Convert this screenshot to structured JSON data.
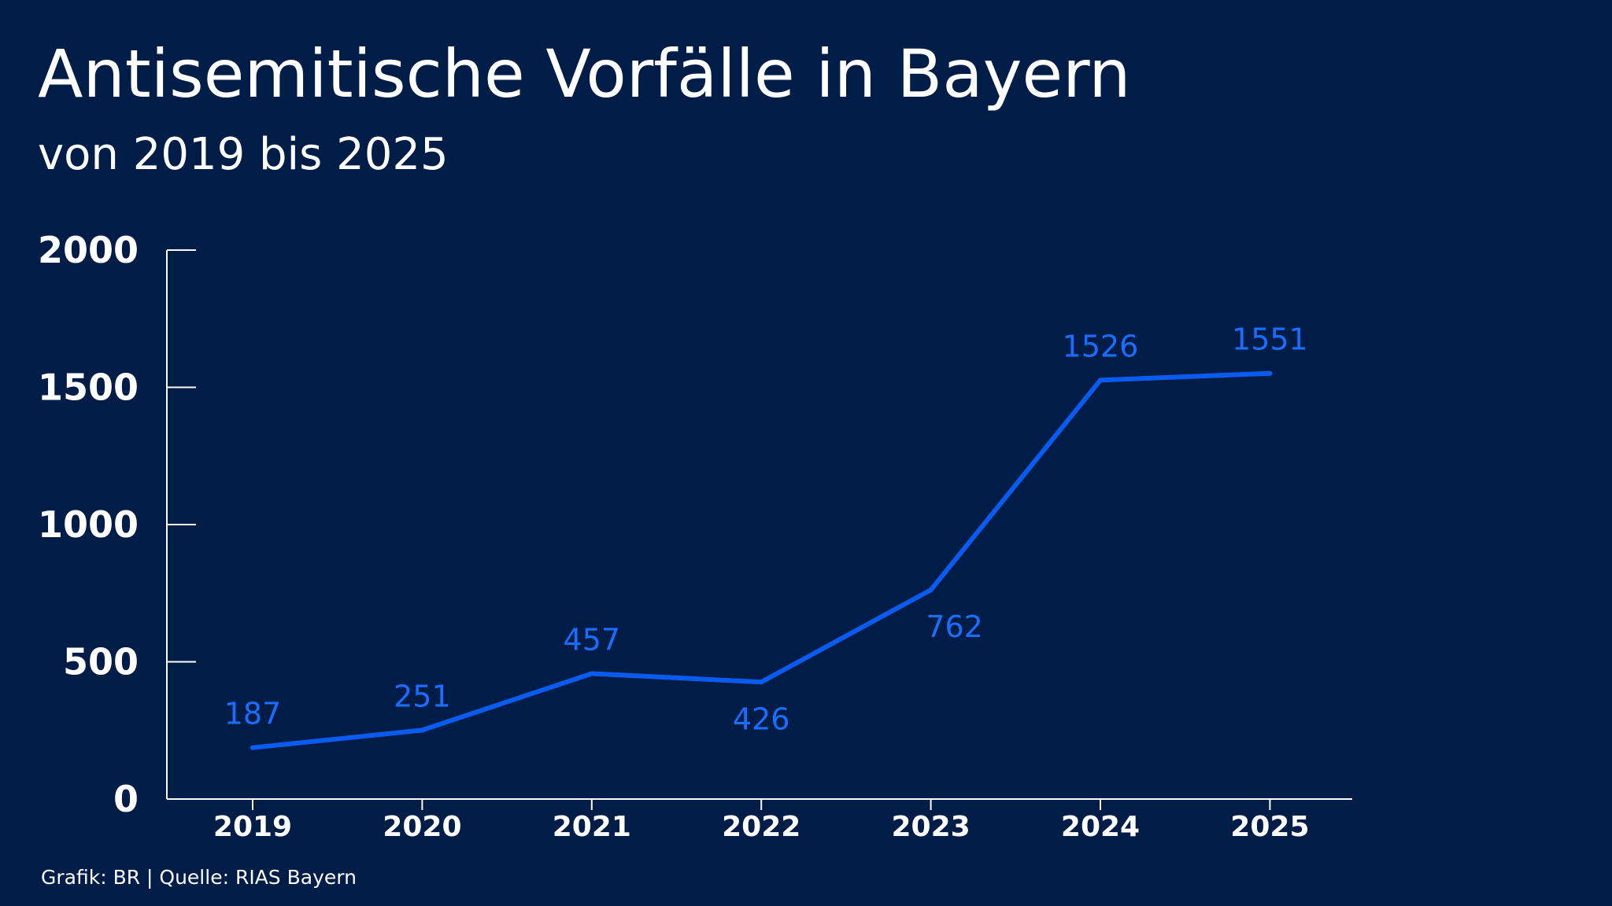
{
  "title": "Antisemitische Vorfälle in Bayern",
  "subtitle": "von 2019 bis 2025",
  "footer": "Grafik: BR | Quelle: RIAS Bayern",
  "colors": {
    "background": "#001d47",
    "line": "#0a5cf0",
    "data_label": "#1a6dff",
    "text": "#ffffff"
  },
  "chart_data": {
    "type": "line",
    "title": "Antisemitische Vorfälle in Bayern",
    "subtitle": "von 2019 bis 2025",
    "xlabel": "",
    "ylabel": "",
    "categories": [
      "2019",
      "2020",
      "2021",
      "2022",
      "2023",
      "2024",
      "2025"
    ],
    "values": [
      187,
      251,
      457,
      426,
      762,
      1526,
      1551
    ],
    "data_labels": [
      "187",
      "251",
      "457",
      "426",
      "762",
      "1526",
      "1551"
    ],
    "y_ticks": [
      "0",
      "500",
      "1000",
      "1500",
      "2000"
    ],
    "ylim": [
      0,
      2000
    ],
    "grid": false,
    "legend": "none"
  }
}
